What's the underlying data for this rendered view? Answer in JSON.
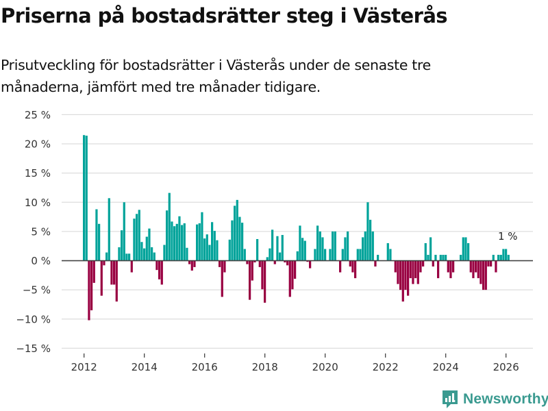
{
  "header": {
    "title": "Priserna på bostadsrätter steg i Västerås",
    "subtitle": "Prisutveckling för bostadsrätter i Västerås under de senaste tre månaderna, jämfört med tre månader tidigare."
  },
  "branding": {
    "logo_text": "Newsworthy",
    "logo_icon": "bar-chart-speech-bubble-icon",
    "logo_color": "#3a9a90"
  },
  "colors": {
    "positive": "#00a39a",
    "negative": "#990041",
    "zero_line": "#444444",
    "grid": "#dddddd"
  },
  "chart_data": {
    "type": "bar",
    "title": "Priserna på bostadsrätter steg i Västerås",
    "subtitle": "Prisutveckling för bostadsrätter i Västerås under de senaste tre månaderna, jämfört med tre månader tidigare.",
    "xlabel": "",
    "ylabel": "",
    "unit": "%",
    "x_start": "2012-01",
    "frequency": "monthly",
    "ylim": [
      -15,
      25
    ],
    "yticks": [
      25,
      20,
      15,
      10,
      5,
      0,
      -5,
      -10,
      -15
    ],
    "ytick_labels": [
      "25 %",
      "20 %",
      "15 %",
      "10 %",
      "5 %",
      "0 %",
      "−5 %",
      "−10 %",
      "−15 %"
    ],
    "xticks": [
      "2012",
      "2014",
      "2016",
      "2018",
      "2020",
      "2022",
      "2024",
      "2026"
    ],
    "grid": true,
    "legend": "none",
    "annotation": {
      "text": "1 %",
      "target": "last"
    },
    "years": [
      {
        "year": 2012,
        "values": [
          21.5,
          21.4,
          -10.2,
          -8.5,
          -3.8,
          8.8,
          6.3,
          -6.0,
          -0.8,
          1.4,
          10.7,
          -4.1
        ]
      },
      {
        "year": 2013,
        "values": [
          -4.1,
          -7.0,
          2.3,
          5.2,
          10.0,
          1.2,
          1.2,
          -2.0,
          7.2,
          8.0,
          8.7,
          3.2
        ]
      },
      {
        "year": 2014,
        "values": [
          2.1,
          4.1,
          5.5,
          2.3,
          1.4,
          -1.6,
          -3.2,
          -4.1,
          2.7,
          8.6,
          11.6,
          6.7
        ]
      },
      {
        "year": 2015,
        "values": [
          5.9,
          6.3,
          7.6,
          6.1,
          6.4,
          2.2,
          -0.6,
          -1.7,
          -1.1,
          6.2,
          6.4,
          8.3
        ]
      },
      {
        "year": 2016,
        "values": [
          3.8,
          4.5,
          2.7,
          6.6,
          5.1,
          3.5,
          -1.1,
          -6.2,
          -2.0,
          0,
          3.6,
          6.9
        ]
      },
      {
        "year": 2017,
        "values": [
          9.4,
          10.4,
          7.5,
          6.5,
          2.0,
          -0.6,
          -6.7,
          -3.4,
          -0.3,
          3.7,
          -1.1,
          -4.9
        ]
      },
      {
        "year": 2018,
        "values": [
          -7.2,
          0.6,
          2.1,
          5.3,
          -0.6,
          4.2,
          1.4,
          4.4,
          -0.3,
          -0.8,
          -6.2,
          -4.9
        ]
      },
      {
        "year": 2019,
        "values": [
          -3.1,
          1.6,
          6.0,
          3.9,
          3.4,
          -0.2,
          -1.3,
          0,
          2.0,
          6.0,
          5.0,
          4.0
        ]
      },
      {
        "year": 2020,
        "values": [
          2.0,
          0,
          2.0,
          5.0,
          5.0,
          0,
          -2.0,
          2.0,
          4.0,
          5.0,
          -1.0,
          -2.0
        ]
      },
      {
        "year": 2021,
        "values": [
          -3.0,
          2.0,
          2.0,
          4.0,
          5.0,
          10.0,
          7.0,
          5.0,
          -1.0,
          1.0,
          0,
          0
        ]
      },
      {
        "year": 2022,
        "values": [
          0,
          3.0,
          2.0,
          0,
          -2.0,
          -4.0,
          -5.0,
          -7.0,
          -5.0,
          -6.0,
          -3.0,
          -4.0
        ]
      },
      {
        "year": 2023,
        "values": [
          -3.0,
          -4.0,
          -2.0,
          -1.0,
          3.0,
          1.0,
          4.0,
          -1.0,
          1.0,
          -3.0,
          1.0,
          1.0
        ]
      },
      {
        "year": 2024,
        "values": [
          1.0,
          -2.0,
          -3.0,
          -2.0,
          0,
          0,
          1.0,
          4.0,
          4.0,
          3.0,
          -2.0,
          -3.0
        ]
      },
      {
        "year": 2025,
        "values": [
          -2.0,
          -3.0,
          -4.0,
          -5.0,
          -5.0,
          -1.0,
          -1.0,
          1.0,
          -2.0,
          1.0,
          1.0,
          2.0
        ]
      },
      {
        "year": 2026,
        "values": [
          2.0,
          1.0
        ]
      }
    ]
  }
}
